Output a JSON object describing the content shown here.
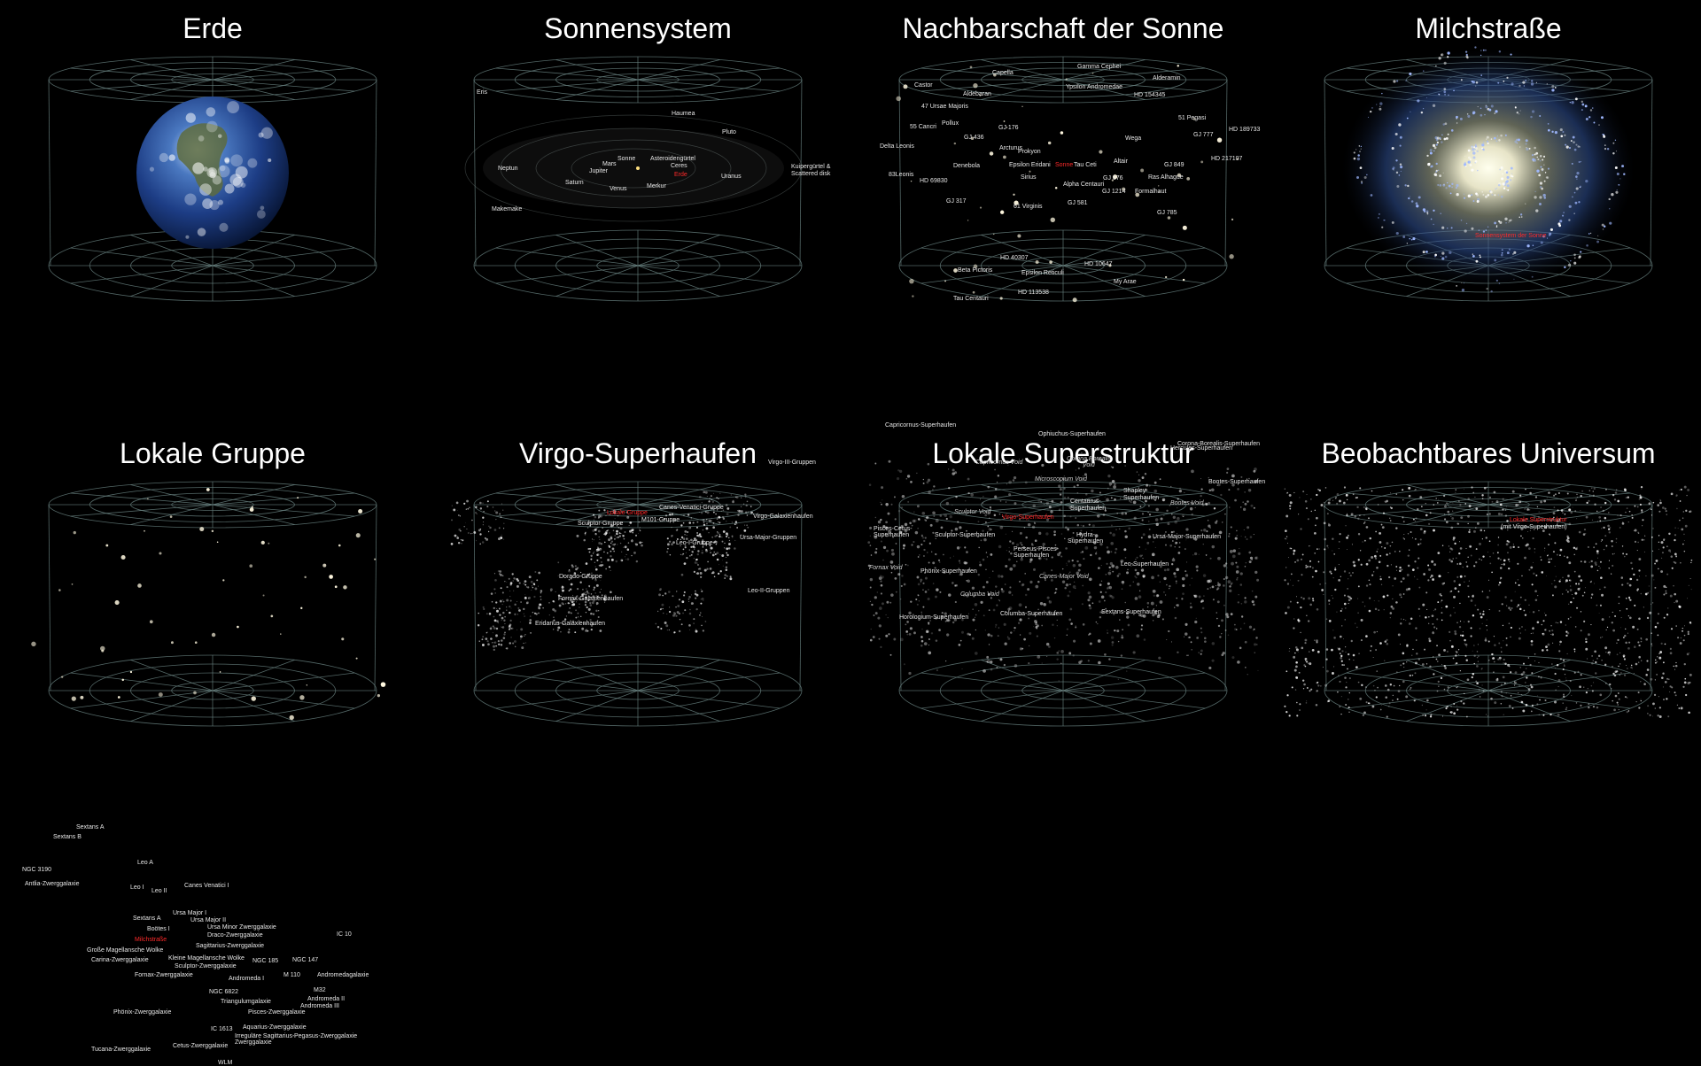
{
  "panels": [
    {
      "key": "erde",
      "title": "Erde",
      "labels": []
    },
    {
      "key": "sonnensystem",
      "title": "Sonnensystem",
      "labels": [
        {
          "t": "Eris"
        },
        {
          "t": "Haumea"
        },
        {
          "t": "Pluto"
        },
        {
          "t": "Neptun"
        },
        {
          "t": "Sonne"
        },
        {
          "t": "Mars"
        },
        {
          "t": "Asteroidengürtel"
        },
        {
          "t": "Ceres"
        },
        {
          "t": "Jupiter"
        },
        {
          "t": "Erde",
          "red": true
        },
        {
          "t": "Saturn"
        },
        {
          "t": "Venus"
        },
        {
          "t": "Merkur"
        },
        {
          "t": "Uranus"
        },
        {
          "t": "Kuipergürtel &"
        },
        {
          "t": "Scattered disk"
        },
        {
          "t": "Makemake"
        }
      ]
    },
    {
      "key": "nachbarschaft",
      "title": "Nachbarschaft der Sonne",
      "labels": [
        {
          "t": "Capella"
        },
        {
          "t": "Gamma Cephei"
        },
        {
          "t": "Alderamin"
        },
        {
          "t": "Castor"
        },
        {
          "t": "Aldebaran"
        },
        {
          "t": "Ypsilon Andromedae"
        },
        {
          "t": "HD 154345"
        },
        {
          "t": "47 Ursae Majoris"
        },
        {
          "t": "51 Pegasi"
        },
        {
          "t": "55 Cancri"
        },
        {
          "t": "Pollux"
        },
        {
          "t": "GJ 176"
        },
        {
          "t": "GJ 777"
        },
        {
          "t": "HD 189733"
        },
        {
          "t": "GJ 436"
        },
        {
          "t": "Wega"
        },
        {
          "t": "Delta Leonis"
        },
        {
          "t": "Arcturus"
        },
        {
          "t": "Prokyon"
        },
        {
          "t": "HD 217107"
        },
        {
          "t": "Denebola"
        },
        {
          "t": "Epsilon Eridani"
        },
        {
          "t": "Sonne",
          "red": true
        },
        {
          "t": "Tau Ceti"
        },
        {
          "t": "Altair"
        },
        {
          "t": "GJ 849"
        },
        {
          "t": "83Leonis"
        },
        {
          "t": "Sirius"
        },
        {
          "t": "GJ 676"
        },
        {
          "t": "Ras Alhague"
        },
        {
          "t": "HD 69830"
        },
        {
          "t": "Alpha Centauri"
        },
        {
          "t": "GJ 1214"
        },
        {
          "t": "Formalhaut"
        },
        {
          "t": "GJ 317"
        },
        {
          "t": "GJ 581"
        },
        {
          "t": "61 Virginis"
        },
        {
          "t": "GJ 785"
        },
        {
          "t": "HD 40307"
        },
        {
          "t": "HD 10647"
        },
        {
          "t": "Beta Pictoris"
        },
        {
          "t": "Epsilon Reticuli"
        },
        {
          "t": "My Arae"
        },
        {
          "t": "HD 113538"
        },
        {
          "t": "Tau Centauri"
        }
      ]
    },
    {
      "key": "milchstrasse",
      "title": "Milchstraße",
      "labels": [
        {
          "t": "Sonnensystem der Sonne",
          "red": true
        }
      ]
    },
    {
      "key": "lokale-gruppe",
      "title": "Lokale Gruppe",
      "labels": [
        {
          "t": "Sextans A"
        },
        {
          "t": "Sextans B"
        },
        {
          "t": "Leo A"
        },
        {
          "t": "NGC 3190"
        },
        {
          "t": "Antlia-Zwerggalaxie"
        },
        {
          "t": "Leo I"
        },
        {
          "t": "Leo II"
        },
        {
          "t": "Canes Venatici I"
        },
        {
          "t": "Ursa Major I"
        },
        {
          "t": "Sextans A"
        },
        {
          "t": "Ursa Major II"
        },
        {
          "t": "Ursa Minor Zwerggalaxie"
        },
        {
          "t": "Boötes I"
        },
        {
          "t": "Draco-Zwerggalaxie"
        },
        {
          "t": "IC 10"
        },
        {
          "t": "Milchstraße",
          "red": true
        },
        {
          "t": "Sagittarius-Zwerggalaxie"
        },
        {
          "t": "Große Magellansche Wolke"
        },
        {
          "t": "Carina-Zwerggalaxie"
        },
        {
          "t": "Kleine Magellansche Wolke"
        },
        {
          "t": "NGC 185"
        },
        {
          "t": "NGC 147"
        },
        {
          "t": "Sculptor-Zwerggalaxie"
        },
        {
          "t": "Andromedagalaxie"
        },
        {
          "t": "Fornax-Zwerggalaxie"
        },
        {
          "t": "M 110"
        },
        {
          "t": "Andromeda I"
        },
        {
          "t": "M32"
        },
        {
          "t": "NGC 6822"
        },
        {
          "t": "Andromeda II"
        },
        {
          "t": "Triangulumgalaxie"
        },
        {
          "t": "Andromeda III"
        },
        {
          "t": "Phönix-Zwerggalaxie"
        },
        {
          "t": "Pisces-Zwerggalaxie"
        },
        {
          "t": "IC 1613"
        },
        {
          "t": "Aquarius-Zwerggalaxie"
        },
        {
          "t": "Irreguläre Sagittarius-"
        },
        {
          "t": "Zwerggalaxie"
        },
        {
          "t": "Pegasus-Zwerggalaxie"
        },
        {
          "t": "Cetus-Zwerggalaxie"
        },
        {
          "t": "Tucana-Zwerggalaxie"
        },
        {
          "t": "WLM"
        }
      ]
    },
    {
      "key": "virgo",
      "title": "Virgo-Superhaufen",
      "labels": [
        {
          "t": "Virgo-III-Gruppen"
        },
        {
          "t": "Canes-Venatici-Gruppe"
        },
        {
          "t": "Lokale Gruppe",
          "red": true
        },
        {
          "t": "Virgo-Galaxienhaufen"
        },
        {
          "t": "Sculptor-Gruppe"
        },
        {
          "t": "M101-Gruppe"
        },
        {
          "t": "Ursa-Major-Gruppen"
        },
        {
          "t": "Leo-I-Gruppe"
        },
        {
          "t": "Dorado-Gruppe"
        },
        {
          "t": "Leo-II-Gruppen"
        },
        {
          "t": "Fornax-Galaxienhaufen"
        },
        {
          "t": "Eridanus-Galaxienhaufen"
        }
      ]
    },
    {
      "key": "superstruktur",
      "title": "Lokale Superstruktur",
      "labels": [
        {
          "t": "Capricornus-Superhaufen"
        },
        {
          "t": "Ophiuchus-Superhaufen"
        },
        {
          "t": "Hercules-Superhaufen"
        },
        {
          "t": "Corona-Borealis-Superhaufen"
        },
        {
          "t": "Capricornus Void",
          "it": true
        },
        {
          "t": "Corona Borealis",
          "it": true
        },
        {
          "t": "Void",
          "it": true
        },
        {
          "t": "Microscopium Void",
          "it": true
        },
        {
          "t": "Bootes-Superhaufen"
        },
        {
          "t": "Shapley-"
        },
        {
          "t": "Superhaufen"
        },
        {
          "t": "Centaurus-"
        },
        {
          "t": "Superhaufen"
        },
        {
          "t": "Bootes Void",
          "it": true
        },
        {
          "t": "Sculptor Void",
          "it": true
        },
        {
          "t": "Virgo-Superhaufen",
          "red": true
        },
        {
          "t": "Pisces-Cetus-"
        },
        {
          "t": "Superhaufen"
        },
        {
          "t": "Sculptor-Superhaufen"
        },
        {
          "t": "Hydra-"
        },
        {
          "t": "Superhaufen"
        },
        {
          "t": "Ursa-Major-Superhaufen"
        },
        {
          "t": "Perseus-Pisces-"
        },
        {
          "t": "Superhaufen"
        },
        {
          "t": "Fornax Void",
          "it": true
        },
        {
          "t": "Phönix-Superhaufen"
        },
        {
          "t": "Canes-Major Void",
          "it": true
        },
        {
          "t": "Leo-Superhaufen"
        },
        {
          "t": "Columba Void",
          "it": true
        },
        {
          "t": "Horologium-Superhaufen"
        },
        {
          "t": "Columba-Superhaufen"
        },
        {
          "t": "Sextans-Superhaufen"
        }
      ]
    },
    {
      "key": "universum",
      "title": "Beobachtbares Universum",
      "labels": [
        {
          "t": "Lokale Superstruktur",
          "red": true
        },
        {
          "t": "(mit Virgo-Superhaufen)"
        }
      ]
    }
  ],
  "colors": {
    "background": "#000000",
    "grid": "#6f8a88",
    "label": "#e6e6e6",
    "highlight": "#ff2a2a"
  }
}
